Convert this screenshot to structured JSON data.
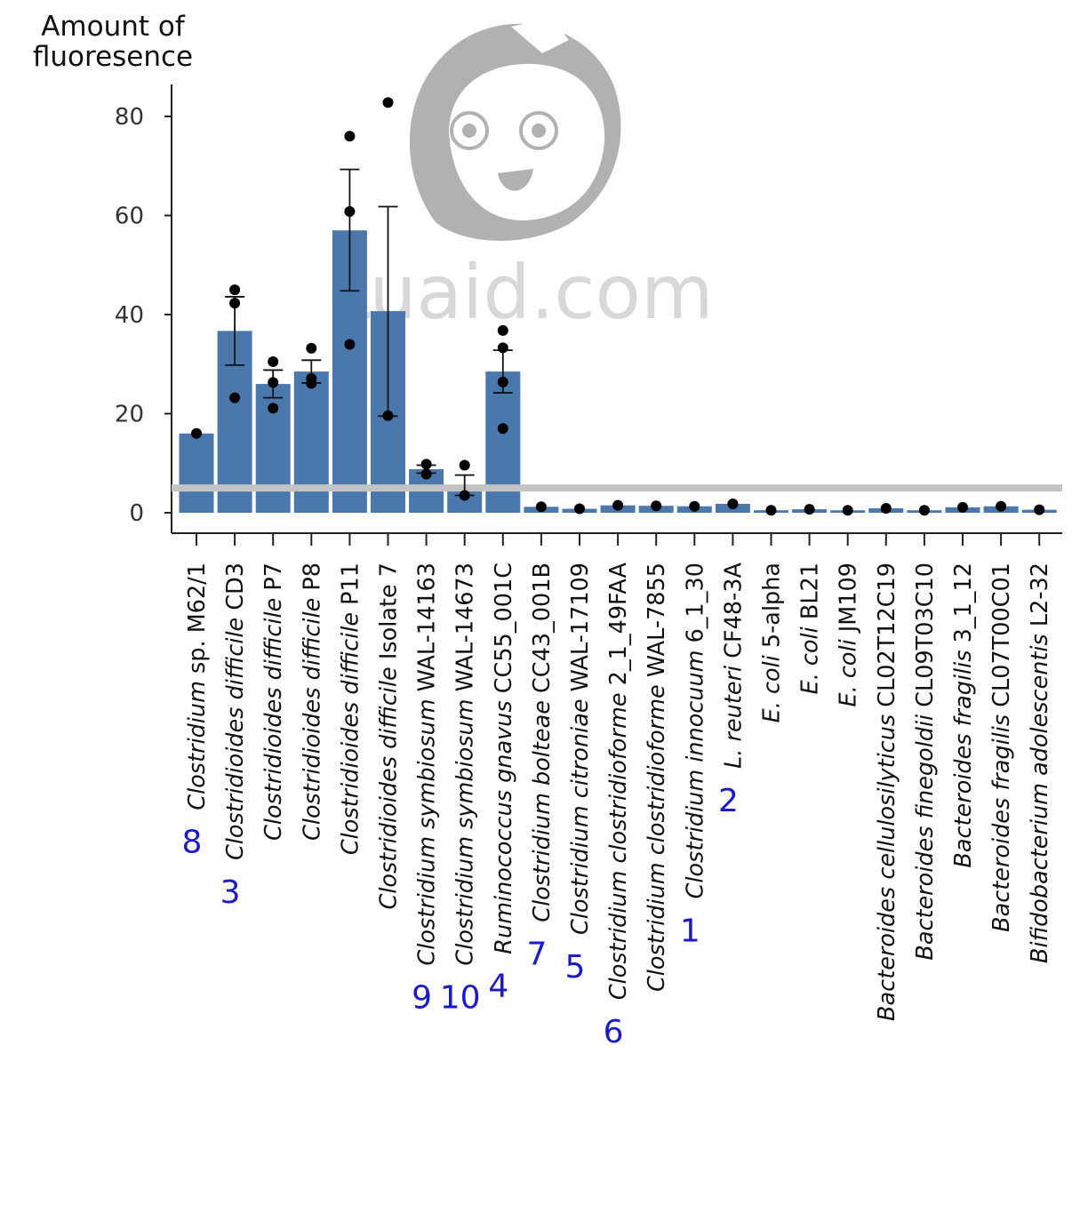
{
  "chart_data": {
    "type": "bar",
    "ylabel_lines": [
      "Amount of",
      "fluoresence"
    ],
    "ylim": [
      0,
      85
    ],
    "yticks": [
      0,
      20,
      40,
      60,
      80
    ],
    "threshold": 5,
    "colors": {
      "bar": "#4a78ad",
      "threshold": "#c4c4c4",
      "rank": "#1a1acb",
      "point": "#000000"
    },
    "watermark": "Luaid.com",
    "categories": [
      {
        "italic": "Clostridium",
        "rest": " sp. M62/1",
        "rank": "8",
        "value": 16,
        "err": null,
        "points": [
          16
        ]
      },
      {
        "italic": "Clostridioides difficile",
        "rest": " CD3",
        "rank": "3",
        "value": 36.7,
        "err": [
          29.8,
          43.6
        ],
        "points": [
          45,
          42.3,
          23.2
        ]
      },
      {
        "italic": "Clostridioides difficile",
        "rest": " P7",
        "rank": "",
        "value": 26,
        "err": [
          23.2,
          28.8
        ],
        "points": [
          30.5,
          26.3,
          21.1
        ]
      },
      {
        "italic": "Clostridioides difficile",
        "rest": " P8",
        "rank": "",
        "value": 28.5,
        "err": [
          26.2,
          30.8
        ],
        "points": [
          33.2,
          27.1,
          26.1
        ]
      },
      {
        "italic": "Clostridioides difficile",
        "rest": " P11",
        "rank": "",
        "value": 57,
        "err": [
          44.8,
          69.3
        ],
        "points": [
          76,
          60.8,
          34
        ]
      },
      {
        "italic": "Clostridioides difficile",
        "rest": " Isolate 7",
        "rank": "",
        "value": 40.7,
        "err": [
          19.5,
          61.8
        ],
        "points": [
          82.8,
          19.6
        ]
      },
      {
        "italic": "Clostridium symbiosum",
        "rest": " WAL-14163",
        "rank": "9",
        "value": 8.8,
        "err": [
          8,
          9.6
        ],
        "points": [
          9.8,
          7.8
        ]
      },
      {
        "italic": "Clostridium symbiosum",
        "rest": " WAL-14673",
        "rank": "10",
        "value": 5.5,
        "err": [
          3.5,
          7.6
        ],
        "points": [
          9.6,
          3.5
        ]
      },
      {
        "italic": "Ruminococcus gnavus",
        "rest": " CC55_001C",
        "rank": "4",
        "value": 28.5,
        "err": [
          24.2,
          32.8
        ],
        "points": [
          36.8,
          33.3,
          26.4,
          17
        ]
      },
      {
        "italic": "Clostridium bolteae",
        "rest": " CC43_001B",
        "rank": "7",
        "value": 1.2,
        "err": null,
        "points": [
          1.2
        ]
      },
      {
        "italic": "Clostridium citroniae",
        "rest": " WAL-17109",
        "rank": "5",
        "value": 0.8,
        "err": null,
        "points": [
          0.8
        ]
      },
      {
        "italic": "Clostridium clostridioforme",
        "rest": " 2_1_49FAA",
        "rank": "6",
        "value": 1.5,
        "err": null,
        "points": [
          1.5
        ]
      },
      {
        "italic": "Clostridium clostridioforme",
        "rest": " WAL-7855",
        "rank": "",
        "value": 1.4,
        "err": null,
        "points": [
          1.4
        ]
      },
      {
        "italic": "Clostridium innocuum",
        "rest": " 6_1_30",
        "rank": "1",
        "value": 1.3,
        "err": null,
        "points": [
          1.3
        ]
      },
      {
        "italic": "L. reuteri",
        "rest": " CF48-3A",
        "rank": "2",
        "value": 1.8,
        "err": null,
        "points": [
          1.8
        ]
      },
      {
        "italic": "E. coli",
        "rest": " 5-alpha",
        "rank": "",
        "value": 0.5,
        "err": null,
        "points": [
          0.5
        ]
      },
      {
        "italic": "E. coli",
        "rest": " BL21",
        "rank": "",
        "value": 0.7,
        "err": null,
        "points": [
          0.7
        ]
      },
      {
        "italic": "E. coli",
        "rest": " JM109",
        "rank": "",
        "value": 0.5,
        "err": null,
        "points": [
          0.5
        ]
      },
      {
        "italic": "Bacteroides cellulosilyticus",
        "rest": " CL02T12C19",
        "rank": "",
        "value": 0.9,
        "err": null,
        "points": [
          0.9
        ]
      },
      {
        "italic": "Bacteroides finegoldii",
        "rest": " CL09T03C10",
        "rank": "",
        "value": 0.5,
        "err": null,
        "points": [
          0.5
        ]
      },
      {
        "italic": "Bacteroides fragilis",
        "rest": " 3_1_12",
        "rank": "",
        "value": 1.1,
        "err": null,
        "points": [
          1.1
        ]
      },
      {
        "italic": "Bacteroides fragilis",
        "rest": " CL07T00C01",
        "rank": "",
        "value": 1.3,
        "err": null,
        "points": [
          1.3
        ]
      },
      {
        "italic": "Bifidobacterium adolescentis",
        "rest": " L2-32",
        "rank": "",
        "value": 0.6,
        "err": null,
        "points": [
          0.6
        ]
      }
    ]
  }
}
